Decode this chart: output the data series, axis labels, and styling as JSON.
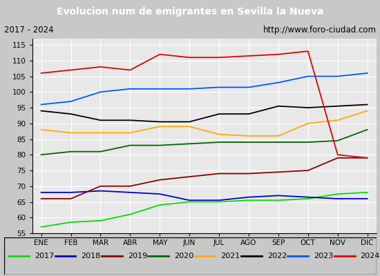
{
  "title": "Evolucion num de emigrantes en Sevilla la Nueva",
  "subtitle_left": "2017 - 2024",
  "subtitle_right": "http://www.foro-ciudad.com",
  "months": [
    "ENE",
    "FEB",
    "MAR",
    "ABR",
    "MAY",
    "JUN",
    "JUL",
    "AGO",
    "SEP",
    "OCT",
    "NOV",
    "DIC"
  ],
  "ylim": [
    55,
    117
  ],
  "yticks": [
    55,
    60,
    65,
    70,
    75,
    80,
    85,
    90,
    95,
    100,
    105,
    110,
    115
  ],
  "series_data": {
    "2017": [
      57,
      58.5,
      59,
      61,
      64,
      65,
      65,
      65.5,
      65.5,
      66,
      67.5,
      68
    ],
    "2018": [
      68,
      68,
      68.5,
      68,
      67.5,
      65.5,
      65.5,
      66.5,
      67,
      66.5,
      66,
      66
    ],
    "2019": [
      66,
      66,
      70,
      70,
      72,
      73,
      74,
      74,
      74.5,
      75,
      79,
      79
    ],
    "2020": [
      80,
      81,
      81,
      83,
      83,
      83.5,
      84,
      84,
      84,
      84,
      84.5,
      88
    ],
    "2021": [
      88,
      87,
      87,
      87,
      89,
      89,
      86.5,
      86,
      86,
      90,
      91,
      94
    ],
    "2022": [
      94,
      93,
      91,
      91,
      90.5,
      90.5,
      93,
      93,
      95.5,
      95,
      95.5,
      96
    ],
    "2023": [
      96,
      97,
      100,
      101,
      101,
      101,
      101.5,
      101.5,
      103,
      105,
      105,
      106
    ],
    "2024": [
      106,
      107,
      108,
      107,
      112,
      111,
      111,
      111.5,
      112,
      113,
      80,
      79
    ]
  },
  "year_colors": {
    "2017": "#00dd00",
    "2018": "#0000cc",
    "2019": "#880000",
    "2020": "#006600",
    "2021": "#ffaa00",
    "2022": "#000000",
    "2023": "#0055ff",
    "2024": "#dd0000"
  },
  "legend_years": [
    "2017",
    "2018",
    "2019",
    "2020",
    "2021",
    "2022",
    "2023",
    "2024"
  ],
  "title_bg": "#4e6cb5",
  "title_color": "#ffffff",
  "subtitle_bg": "#d4d4d4",
  "plot_bg": "#e8e8e8",
  "grid_color": "#ffffff",
  "fig_bg": "#c8c8c8"
}
